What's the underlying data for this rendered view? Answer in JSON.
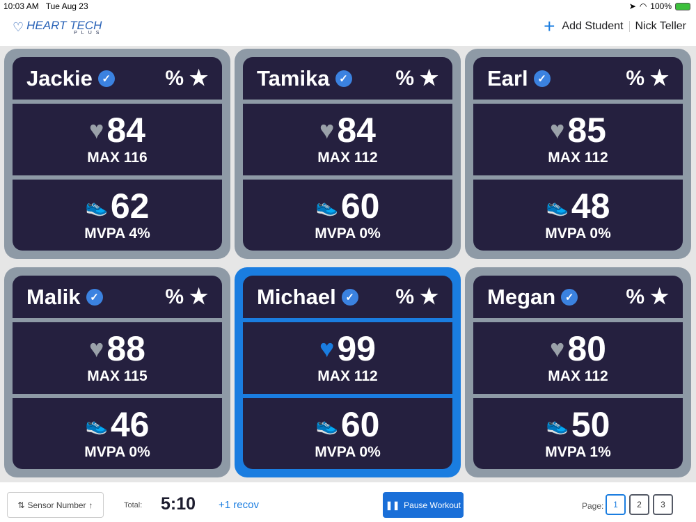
{
  "status": {
    "time": "10:03 AM",
    "date": "Tue Aug 23",
    "battery": "100%"
  },
  "header": {
    "logo_text": "HEART TECH",
    "logo_sub": "PLUS",
    "add_student": "Add Student",
    "user": "Nick Teller"
  },
  "colors": {
    "accent": "#1a7de0",
    "card_bg": "#25203f",
    "card_border": "#8e9aa6"
  },
  "cards": [
    {
      "name": "Jackie",
      "hr": "84",
      "max": "MAX 116",
      "steps": "62",
      "mvpa": "MVPA 4%",
      "active": false
    },
    {
      "name": "Tamika",
      "hr": "84",
      "max": "MAX 112",
      "steps": "60",
      "mvpa": "MVPA 0%",
      "active": false
    },
    {
      "name": "Earl",
      "hr": "85",
      "max": "MAX 112",
      "steps": "48",
      "mvpa": "MVPA 0%",
      "active": false
    },
    {
      "name": "Malik",
      "hr": "88",
      "max": "MAX 115",
      "steps": "46",
      "mvpa": "MVPA 0%",
      "active": false
    },
    {
      "name": "Michael",
      "hr": "99",
      "max": "MAX 112",
      "steps": "60",
      "mvpa": "MVPA 0%",
      "active": true
    },
    {
      "name": "Megan",
      "hr": "80",
      "max": "MAX 112",
      "steps": "50",
      "mvpa": "MVPA 1%",
      "active": false
    }
  ],
  "card_icons": {
    "percent": "%",
    "star": "★",
    "check": "✓",
    "heart": "♥",
    "shoe": "👟"
  },
  "footer": {
    "sort": "Sensor Number",
    "total_label": "Total:",
    "time": "5:10",
    "recov": "+1 recov",
    "pause": "Pause Workout",
    "page_label": "Page:",
    "pages": [
      "1",
      "2",
      "3"
    ],
    "current_page": "1"
  }
}
